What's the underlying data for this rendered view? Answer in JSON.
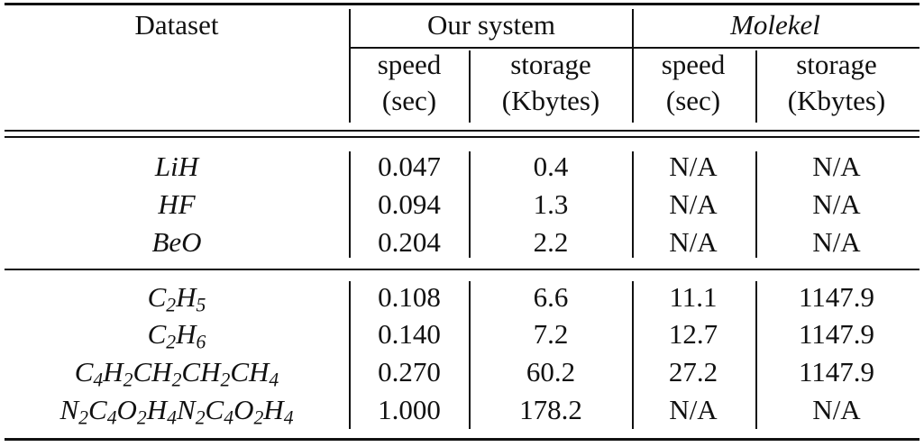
{
  "header": {
    "dataset": "Dataset",
    "our_system": "Our system",
    "molekel": "Molekel",
    "speed": "speed",
    "sec": "(sec)",
    "storage": "storage",
    "kbytes": "(Kbytes)"
  },
  "groups": [
    {
      "rows": [
        {
          "name": "LiH",
          "our_speed": "0.047",
          "our_storage": "0.4",
          "mol_speed": "N/A",
          "mol_storage": "N/A"
        },
        {
          "name": "HF",
          "our_speed": "0.094",
          "our_storage": "1.3",
          "mol_speed": "N/A",
          "mol_storage": "N/A"
        },
        {
          "name": "BeO",
          "our_speed": "0.204",
          "our_storage": "2.2",
          "mol_speed": "N/A",
          "mol_storage": "N/A"
        }
      ]
    },
    {
      "rows": [
        {
          "name_parts": [
            [
              "C",
              "2"
            ],
            [
              "H",
              "5"
            ]
          ],
          "our_speed": "0.108",
          "our_storage": "6.6",
          "mol_speed": "11.1",
          "mol_storage": "1147.9"
        },
        {
          "name_parts": [
            [
              "C",
              "2"
            ],
            [
              "H",
              "6"
            ]
          ],
          "our_speed": "0.140",
          "our_storage": "7.2",
          "mol_speed": "12.7",
          "mol_storage": "1147.9"
        },
        {
          "name_parts": [
            [
              "C",
              "4"
            ],
            [
              "H",
              "2"
            ],
            [
              "CH",
              "2"
            ],
            [
              "CH",
              "2"
            ],
            [
              "CH",
              "4"
            ]
          ],
          "our_speed": "0.270",
          "our_storage": "60.2",
          "mol_speed": "27.2",
          "mol_storage": "1147.9"
        },
        {
          "name_parts": [
            [
              "N",
              "2"
            ],
            [
              "C",
              "4"
            ],
            [
              "O",
              "2"
            ],
            [
              "H",
              "4"
            ],
            [
              "N",
              "2"
            ],
            [
              "C",
              "4"
            ],
            [
              "O",
              "2"
            ],
            [
              "H",
              "4"
            ]
          ],
          "our_speed": "1.000",
          "our_storage": "178.2",
          "mol_speed": "N/A",
          "mol_storage": "N/A"
        }
      ]
    }
  ]
}
